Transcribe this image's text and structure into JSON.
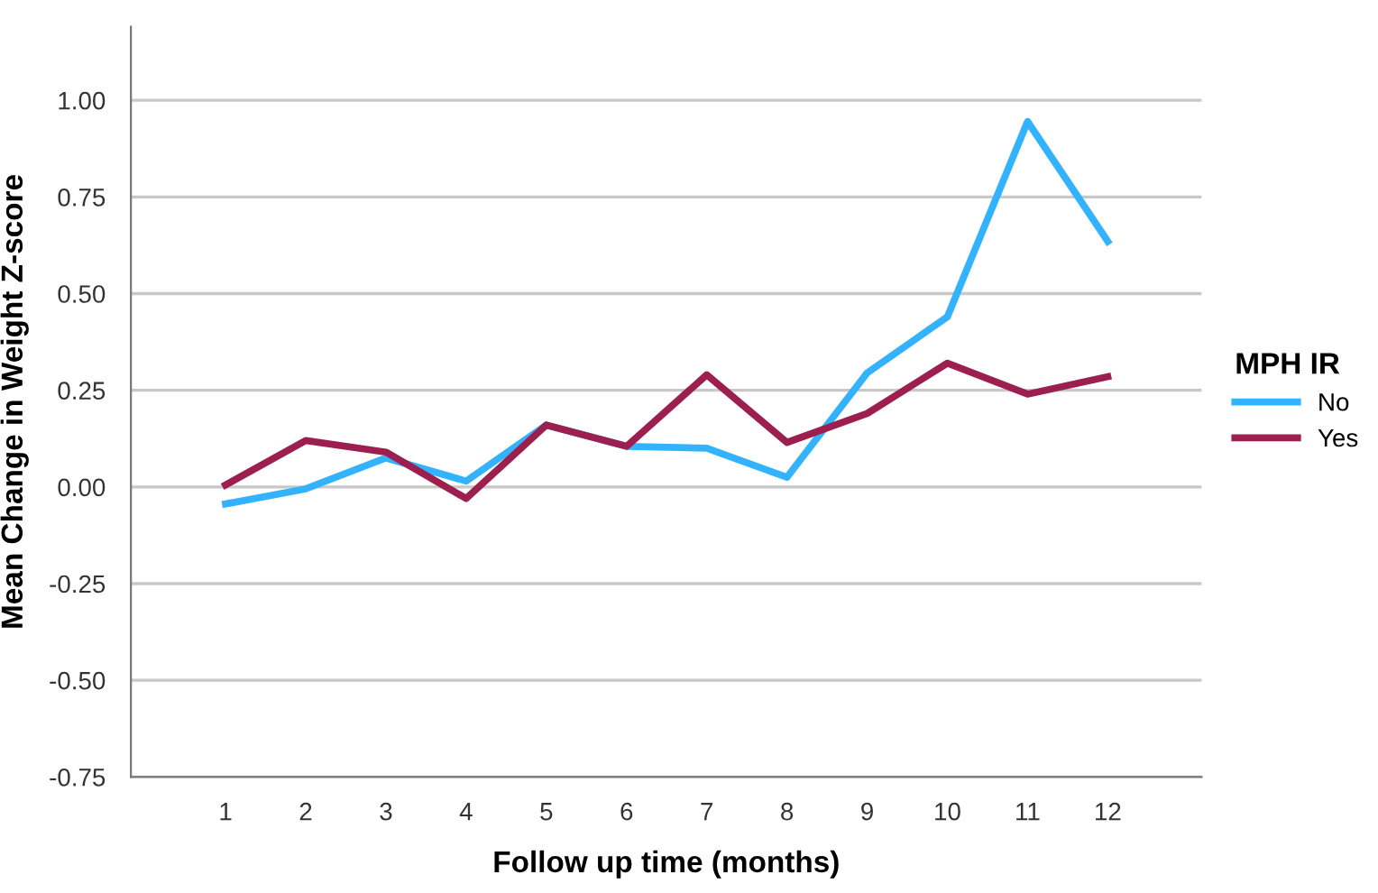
{
  "chart_data": {
    "type": "line",
    "xlabel": "Follow up time (months)",
    "ylabel": "Mean Change in Weight Z-score",
    "legend_title": "MPH IR",
    "legend": "right",
    "grid": "y",
    "marker": "none",
    "line_style": "solid",
    "categories": [
      "1",
      "2",
      "3",
      "4",
      "5",
      "6",
      "7",
      "8",
      "9",
      "10",
      "11",
      "12"
    ],
    "ylim": [
      -0.75,
      1.19
    ],
    "yticks": [
      {
        "value": -0.75,
        "label": "-0.75"
      },
      {
        "value": -0.5,
        "label": "-0.50"
      },
      {
        "value": -0.25,
        "label": "-0.25"
      },
      {
        "value": 0,
        "label": "0.00"
      },
      {
        "value": 0.25,
        "label": "0.25"
      },
      {
        "value": 0.5,
        "label": "0.50"
      },
      {
        "value": 0.75,
        "label": "0.75"
      },
      {
        "value": 1,
        "label": "1.00"
      }
    ],
    "series": [
      {
        "name": "No",
        "color": "#33b3ff",
        "values": [
          -0.044,
          -0.005,
          0.075,
          0.015,
          0.16,
          0.105,
          0.1,
          0.025,
          0.295,
          0.44,
          0.945,
          0.635
        ]
      },
      {
        "name": "Yes",
        "color": "#9c1f4f",
        "values": [
          0.005,
          0.12,
          0.09,
          -0.03,
          0.16,
          0.105,
          0.29,
          0.115,
          0.19,
          0.32,
          0.24,
          0.285
        ]
      }
    ]
  }
}
